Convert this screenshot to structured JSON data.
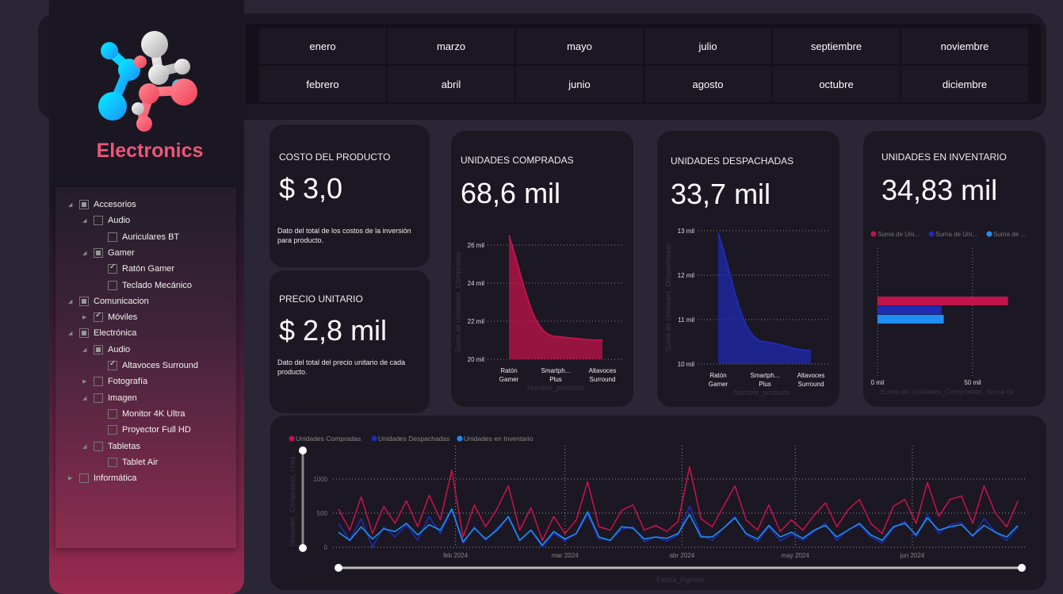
{
  "brand": {
    "name": "Electronics"
  },
  "months": [
    [
      "enero",
      "febrero"
    ],
    [
      "marzo",
      "abril"
    ],
    [
      "mayo",
      "junio"
    ],
    [
      "julio",
      "agosto"
    ],
    [
      "septiembre",
      "octubre"
    ],
    [
      "noviembre",
      "diciembre"
    ]
  ],
  "tree": [
    {
      "label": "Accesorios",
      "level": 0,
      "expand": "open",
      "check": "partial"
    },
    {
      "label": "Audio",
      "level": 1,
      "expand": "open",
      "check": "none"
    },
    {
      "label": "Auriculares BT",
      "level": 2,
      "expand": "",
      "check": "none"
    },
    {
      "label": "Gamer",
      "level": 1,
      "expand": "open",
      "check": "partial"
    },
    {
      "label": "Ratón Gamer",
      "level": 2,
      "expand": "",
      "check": "checked"
    },
    {
      "label": "Teclado Mecánico",
      "level": 2,
      "expand": "",
      "check": "none"
    },
    {
      "label": "Comunicacion",
      "level": 0,
      "expand": "open",
      "check": "partial"
    },
    {
      "label": "Móviles",
      "level": 1,
      "expand": "closed",
      "check": "checked"
    },
    {
      "label": "Electrónica",
      "level": 0,
      "expand": "open",
      "check": "partial"
    },
    {
      "label": "Audio",
      "level": 1,
      "expand": "open",
      "check": "partial"
    },
    {
      "label": "Altavoces Surround",
      "level": 2,
      "expand": "",
      "check": "checked"
    },
    {
      "label": "Fotografía",
      "level": 1,
      "expand": "closed",
      "check": "none"
    },
    {
      "label": "Imagen",
      "level": 1,
      "expand": "open",
      "check": "none"
    },
    {
      "label": "Monitor 4K Ultra",
      "level": 2,
      "expand": "",
      "check": "none"
    },
    {
      "label": "Proyector Full HD",
      "level": 2,
      "expand": "",
      "check": "none"
    },
    {
      "label": "Tabletas",
      "level": 1,
      "expand": "open",
      "check": "none"
    },
    {
      "label": "Tablet Air",
      "level": 2,
      "expand": "",
      "check": "none"
    },
    {
      "label": "Informática",
      "level": 0,
      "expand": "closed",
      "check": "none"
    }
  ],
  "kpis": {
    "costo": {
      "title": "COSTO DEL PRODUCTO",
      "value": "$ 3,0",
      "desc": "Dato del total de los costos de la inversión para producto."
    },
    "precio": {
      "title": "PRECIO UNITARIO",
      "value": "$ 2,8 mil",
      "desc": "Dato del total del precio unitario de cada producto."
    },
    "compradas": {
      "title": "UNIDADES COMPRADAS",
      "value": "68,6 mil"
    },
    "despachadas": {
      "title": "UNIDADES DESPACHADAS",
      "value": "33,7 mil"
    },
    "inventario": {
      "title": "UNIDADES EN INVENTARIO",
      "value": "34,83 mil"
    }
  },
  "colors": {
    "compradas": "#c0144a",
    "despachadas": "#1f2bb0",
    "inventario": "#1e8ff0"
  },
  "chart_data": [
    {
      "type": "area",
      "categories": [
        "Ratón Gamer",
        "Smartph... Plus",
        "Altavoces Surround"
      ],
      "category_lines": [
        [
          "Ratón",
          "Gamer"
        ],
        [
          "Smartph...",
          "Plus"
        ],
        [
          "Altavoces",
          "Surround"
        ]
      ],
      "values": [
        26500,
        21200,
        21000
      ],
      "ylabel": "Suma de Unidades_Compradas",
      "xlabel": "Nombre_producto",
      "yticks": [
        {
          "v": 20000,
          "label": "20 mil"
        },
        {
          "v": 22000,
          "label": "22 mil"
        },
        {
          "v": 24000,
          "label": "24 mil"
        },
        {
          "v": 26000,
          "label": "26 mil"
        }
      ],
      "ylim": [
        20000,
        26500
      ]
    },
    {
      "type": "area",
      "categories": [
        "Ratón Gamer",
        "Smartph... Plus",
        "Altavoces Surround"
      ],
      "category_lines": [
        [
          "Ratón",
          "Gamer"
        ],
        [
          "Smartph...",
          "Plus"
        ],
        [
          "Altavoces",
          "Surround"
        ]
      ],
      "values": [
        12950,
        10500,
        10300
      ],
      "ylabel": "Suma de Unidades_Despachadas",
      "xlabel": "Nombre_producto",
      "yticks": [
        {
          "v": 10000,
          "label": "10 mil"
        },
        {
          "v": 11000,
          "label": "11 mil"
        },
        {
          "v": 12000,
          "label": "12 mil"
        },
        {
          "v": 13000,
          "label": "13 mil"
        }
      ],
      "ylim": [
        10000,
        13000
      ]
    },
    {
      "type": "bar",
      "orientation": "horizontal",
      "series": [
        {
          "name": "Suma de Uni...",
          "value": 68.6
        },
        {
          "name": "Suma de Uni...",
          "value": 33.7
        },
        {
          "name": "Suma de ...",
          "value": 34.83
        }
      ],
      "xlabel": "Suma de Unidades_Compradas, Suma de...",
      "xticks": [
        {
          "v": 0,
          "label": "0 mil"
        },
        {
          "v": 50,
          "label": "50 mil"
        }
      ],
      "legend": "top"
    },
    {
      "type": "line",
      "ylabel": "Unidades_Compradas, Unid...",
      "xlabel": "Fecha_ingreso",
      "legend": "top-left",
      "ylim": [
        0,
        1000
      ],
      "yticks": [
        {
          "v": 0,
          "label": "0"
        },
        {
          "v": 500,
          "label": "500"
        },
        {
          "v": 1000,
          "label": "1000"
        }
      ],
      "xticks": [
        {
          "date": "2024-02-01",
          "label": "feb 2024"
        },
        {
          "date": "2024-03-01",
          "label": "mar 2024"
        },
        {
          "date": "2024-04-01",
          "label": "abr 2024"
        },
        {
          "date": "2024-05-01",
          "label": "may 2024"
        },
        {
          "date": "2024-06-01",
          "label": "jun 2024"
        }
      ],
      "xlim": [
        "2024-01-01",
        "2024-06-30"
      ],
      "x": [
        "2024-01-01",
        "2024-01-04",
        "2024-01-07",
        "2024-01-10",
        "2024-01-13",
        "2024-01-16",
        "2024-01-19",
        "2024-01-22",
        "2024-01-25",
        "2024-01-28",
        "2024-01-31",
        "2024-02-03",
        "2024-02-06",
        "2024-02-09",
        "2024-02-12",
        "2024-02-15",
        "2024-02-18",
        "2024-02-21",
        "2024-02-24",
        "2024-02-27",
        "2024-03-01",
        "2024-03-04",
        "2024-03-07",
        "2024-03-10",
        "2024-03-13",
        "2024-03-16",
        "2024-03-19",
        "2024-03-22",
        "2024-03-25",
        "2024-03-28",
        "2024-03-31",
        "2024-04-03",
        "2024-04-06",
        "2024-04-09",
        "2024-04-12",
        "2024-04-15",
        "2024-04-18",
        "2024-04-21",
        "2024-04-24",
        "2024-04-27",
        "2024-04-30",
        "2024-05-03",
        "2024-05-06",
        "2024-05-09",
        "2024-05-12",
        "2024-05-15",
        "2024-05-18",
        "2024-05-21",
        "2024-05-24",
        "2024-05-27",
        "2024-05-30",
        "2024-06-02",
        "2024-06-05",
        "2024-06-08",
        "2024-06-11",
        "2024-06-14",
        "2024-06-17",
        "2024-06-20",
        "2024-06-23",
        "2024-06-26",
        "2024-06-29"
      ],
      "series": [
        {
          "name": "Unidades Compradas",
          "values": [
            560,
            250,
            740,
            200,
            600,
            350,
            680,
            300,
            760,
            400,
            1130,
            150,
            620,
            300,
            560,
            900,
            250,
            580,
            100,
            450,
            200,
            400,
            960,
            300,
            250,
            540,
            620,
            250,
            320,
            230,
            380,
            1180,
            420,
            300,
            600,
            900,
            400,
            250,
            620,
            230,
            400,
            250,
            470,
            650,
            300,
            550,
            700,
            350,
            200,
            600,
            700,
            350,
            950,
            450,
            700,
            750,
            350,
            900,
            500,
            300,
            680
          ]
        },
        {
          "name": "Unidades Despachadas",
          "values": [
            350,
            100,
            420,
            0,
            300,
            150,
            330,
            100,
            450,
            200,
            550,
            50,
            300,
            100,
            280,
            430,
            100,
            250,
            0,
            200,
            100,
            200,
            480,
            120,
            100,
            260,
            300,
            80,
            150,
            90,
            180,
            600,
            180,
            100,
            280,
            450,
            180,
            80,
            300,
            90,
            190,
            100,
            230,
            350,
            100,
            260,
            330,
            150,
            60,
            280,
            380,
            150,
            480,
            200,
            330,
            360,
            150,
            420,
            220,
            100,
            300
          ]
        },
        {
          "name": "Unidades en Inventario",
          "values": [
            220,
            100,
            300,
            120,
            270,
            230,
            350,
            180,
            330,
            250,
            560,
            80,
            280,
            120,
            250,
            450,
            100,
            250,
            30,
            230,
            120,
            200,
            520,
            150,
            100,
            300,
            280,
            120,
            150,
            130,
            200,
            480,
            150,
            150,
            280,
            430,
            200,
            120,
            320,
            150,
            220,
            130,
            250,
            320,
            150,
            250,
            350,
            180,
            100,
            300,
            350,
            180,
            430,
            250,
            300,
            330,
            170,
            320,
            220,
            150,
            320
          ]
        }
      ]
    }
  ]
}
